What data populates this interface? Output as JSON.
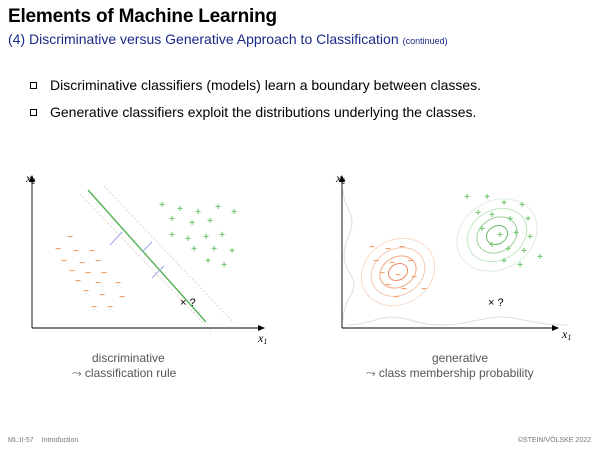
{
  "header": {
    "title": "Elements of Machine Learning",
    "subtitle": "(4) Discriminative versus Generative Approach to Classification",
    "subtitle_note": "(continued)"
  },
  "bullets": [
    "Discriminative classifiers (models) learn a boundary between classes.",
    "Generative classifiers exploit the distributions underlying the classes."
  ],
  "plots": {
    "axis_x_label": "x",
    "axis_x_sub": "1",
    "axis_y_label": "x",
    "axis_y_sub": "2",
    "query_label": "× ?",
    "plus_symbol": "+",
    "minus_symbol": "−",
    "left_caption_line1": "discriminative",
    "left_caption_line2": "⤳ classification rule",
    "right_caption_line1": "generative",
    "right_caption_line2": "⤳ class membership probability"
  },
  "colors": {
    "plus": "#7ac97a",
    "minus": "#f0a070",
    "boundary": "#5bb55b",
    "margin_tick": "#9aa6e0",
    "axis": "#000000",
    "subtitle": "#1a2a88"
  },
  "footer": {
    "slide_id": "ML:II-57",
    "section": "Introduction",
    "copyright": "©STEIN/VÖLSKE 2022"
  }
}
